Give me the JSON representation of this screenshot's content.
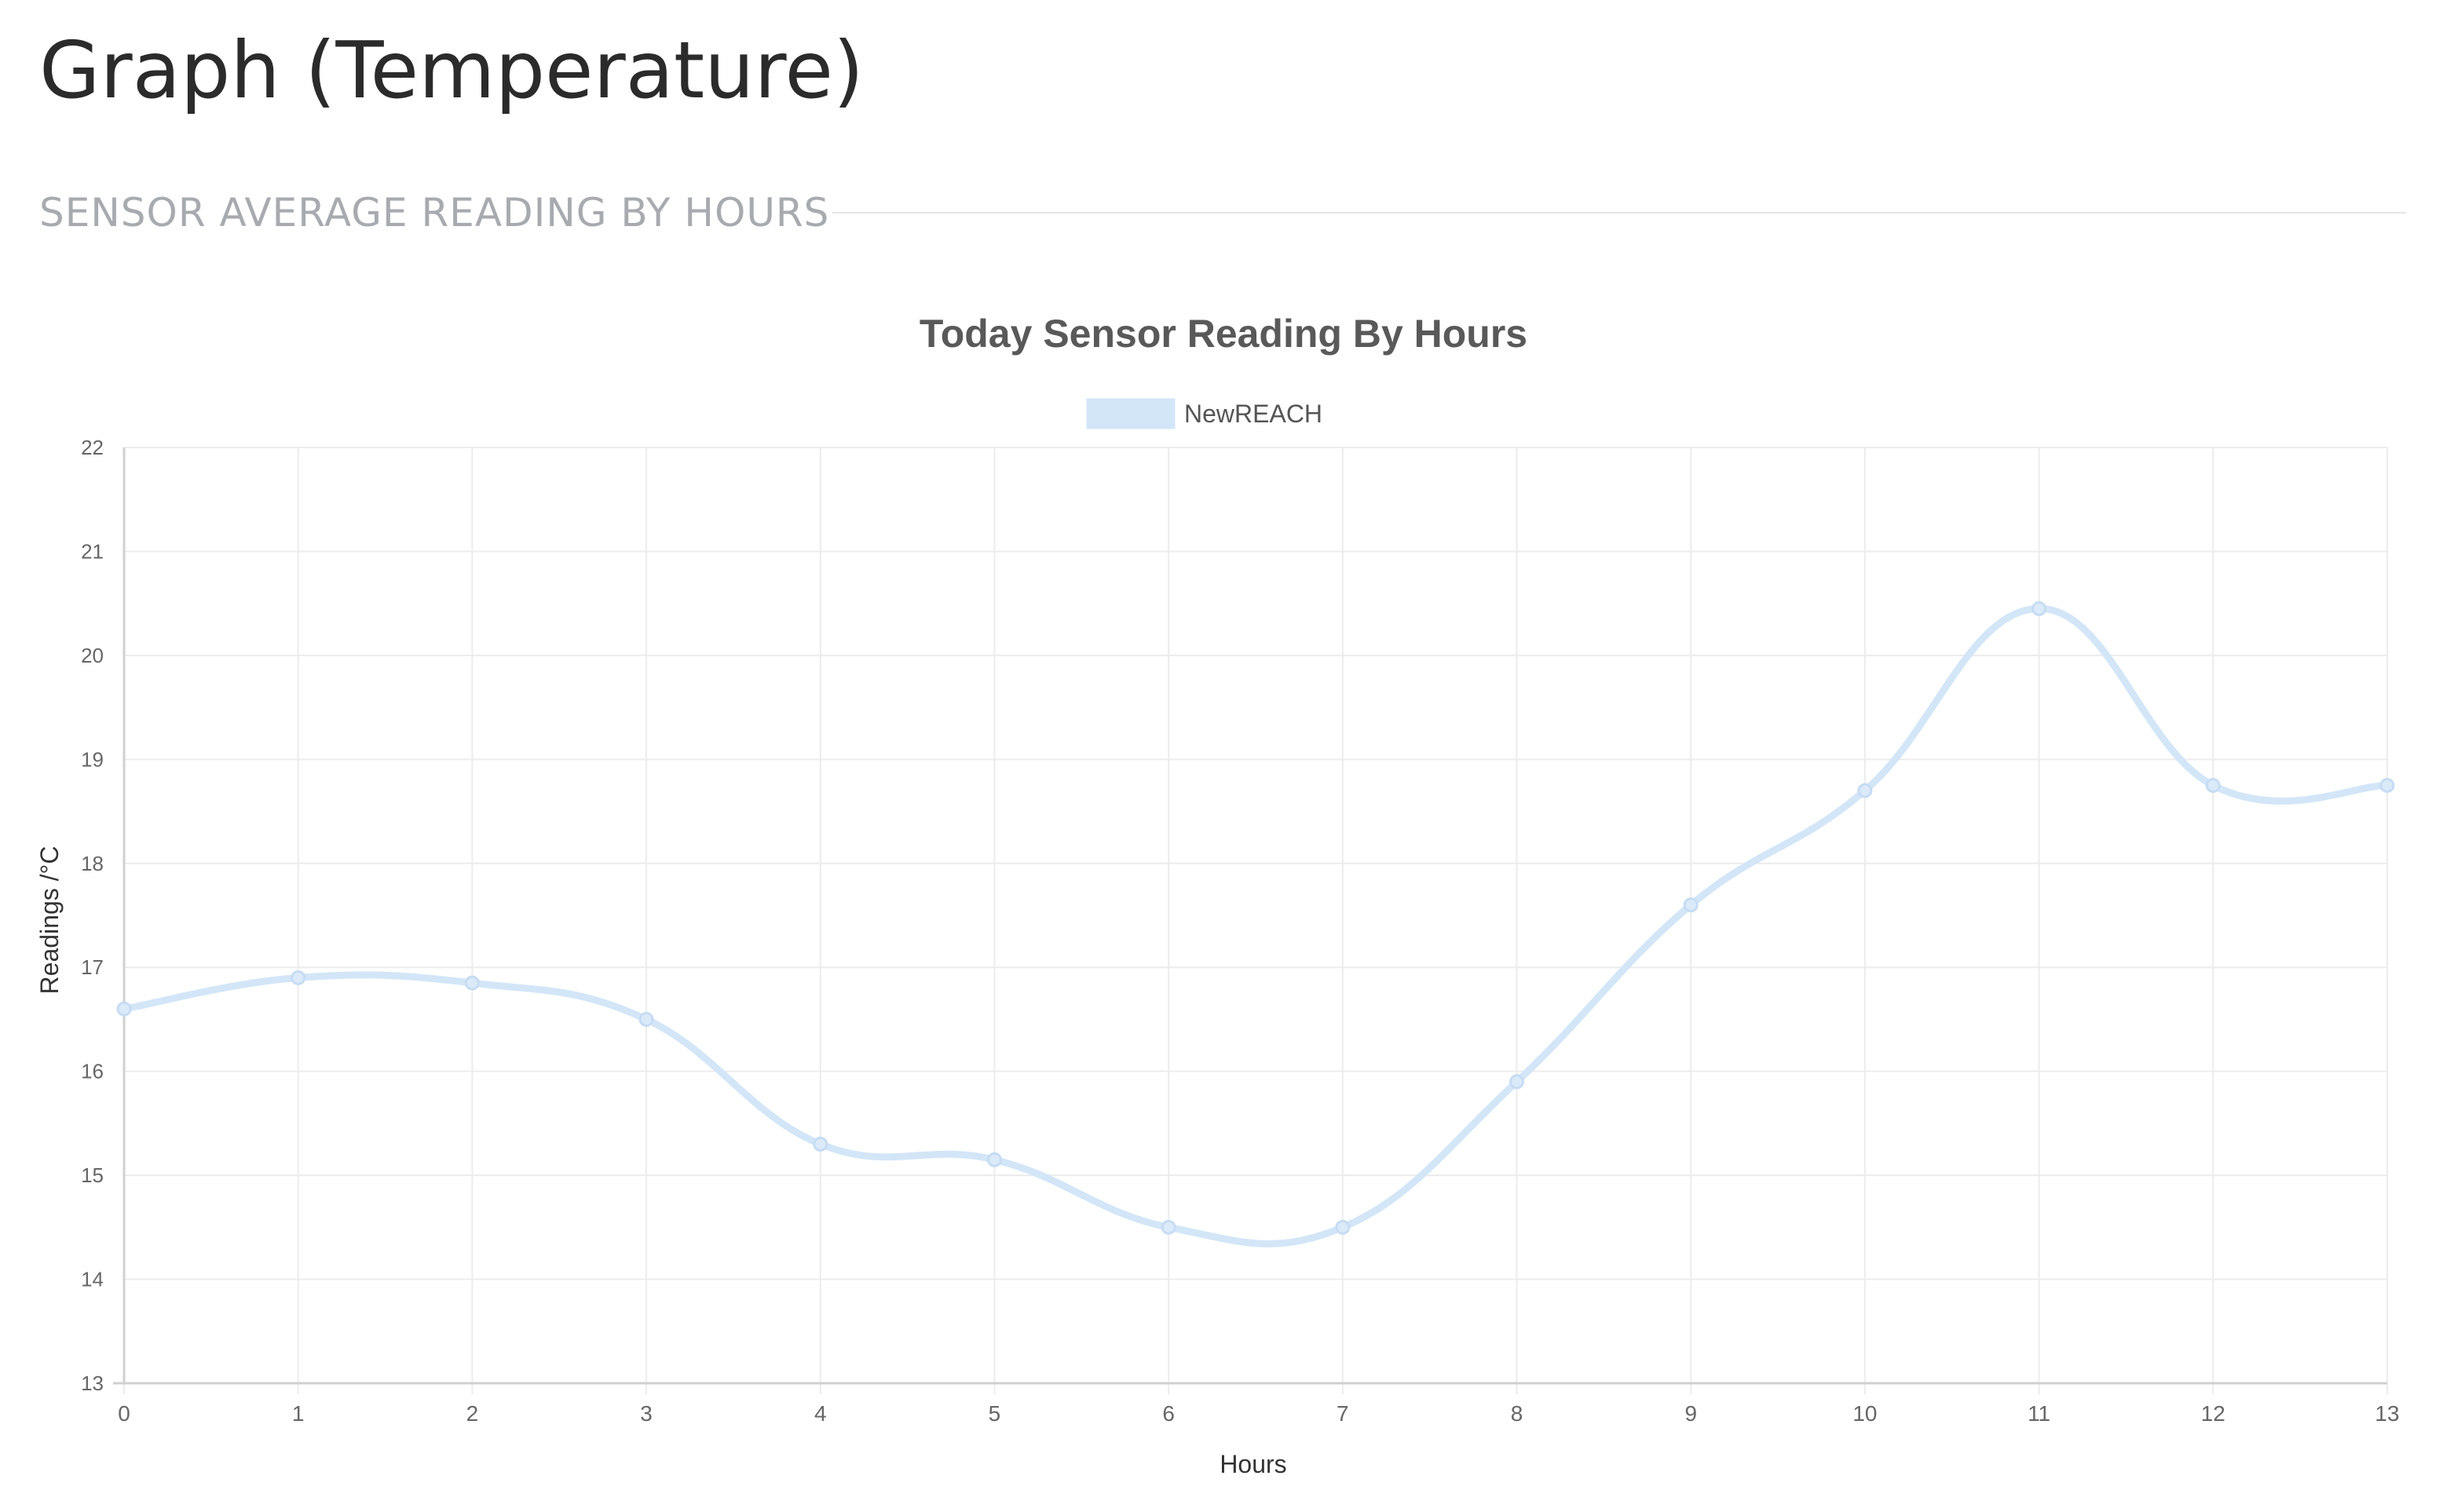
{
  "page": {
    "title": "Graph (Temperature)",
    "section_subtitle": "SENSOR AVERAGE READING BY HOURS"
  },
  "chart_data": {
    "type": "line",
    "title": "Today Sensor Reading By Hours",
    "xlabel": "Hours",
    "ylabel": "Readings /°C",
    "x": [
      0,
      1,
      2,
      3,
      4,
      5,
      6,
      7,
      8,
      9,
      10,
      11,
      12,
      13
    ],
    "xlim": [
      0,
      13
    ],
    "ylim": [
      13,
      22
    ],
    "yticks": [
      13,
      14,
      15,
      16,
      17,
      18,
      19,
      20,
      21,
      22
    ],
    "grid": true,
    "legend_position": "top",
    "series": [
      {
        "name": "NewREACH",
        "values": [
          16.6,
          16.9,
          16.85,
          16.5,
          15.3,
          15.15,
          14.5,
          14.5,
          15.9,
          17.6,
          18.7,
          20.45,
          18.75,
          18.75
        ],
        "color": "#d3e6f8"
      }
    ],
    "colors": {
      "grid": "#ececec",
      "axis": "#d0d0d0",
      "tick_text": "#666666",
      "title_text": "#595959",
      "axis_title_text": "#333333"
    }
  }
}
